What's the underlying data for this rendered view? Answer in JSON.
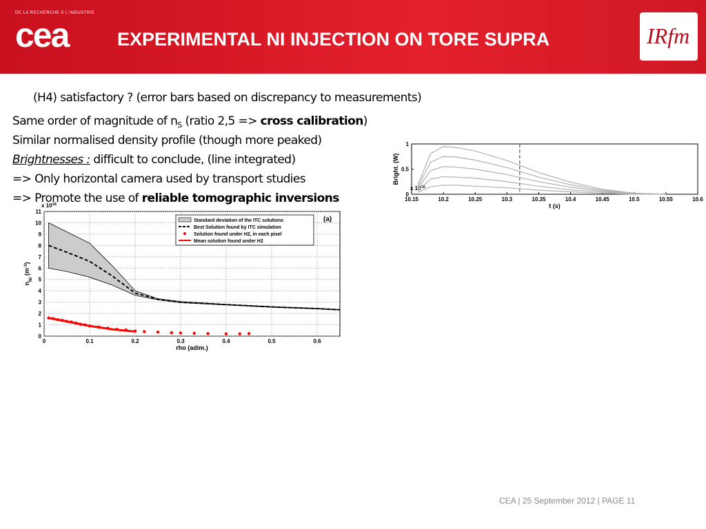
{
  "header": {
    "org": "DE LA RECHERCHE À L'INDUSTRIE",
    "logo": "cea",
    "title": "EXPERIMENTAL NI INJECTION ON TORE SUPRA",
    "right_logo": "IRfm"
  },
  "body": {
    "lines": [
      [
        {
          "text": "(H4) satisfactory ? (error bars based on discrepancy to measurements)",
          "style": "normal"
        }
      ],
      [
        {
          "text": "Same order of magnitude of n",
          "style": "normal"
        },
        {
          "text": "S",
          "style": "sub"
        },
        {
          "text": " (ratio 2,5 => ",
          "style": "normal"
        },
        {
          "text": "cross calibration",
          "style": "bold"
        },
        {
          "text": ")",
          "style": "normal"
        }
      ],
      [
        {
          "text": "Similar normalised density profile (though more peaked)",
          "style": "normal"
        }
      ],
      [
        {
          "text": "Brightnesses :",
          "style": "italic-underline"
        },
        {
          "text": " difficult to conclude, (line integrated)",
          "style": "normal"
        }
      ],
      [
        {
          "text": "=> Only horizontal camera used by transport studies",
          "style": "normal"
        }
      ],
      [
        {
          "text": "=> Promote the use of ",
          "style": "normal"
        },
        {
          "text": "reliable tomographic inversions",
          "style": "bold"
        }
      ]
    ]
  },
  "charts": [
    {
      "type": "line",
      "y_label": [
        {
          "text": "Bright. (W)",
          "shift": "none"
        }
      ],
      "y_multiplier": [
        {
          "text": "x 10",
          "shift": "none"
        },
        {
          "text": "16",
          "shift": "sup"
        }
      ],
      "x_label": [
        {
          "text": "t (s)",
          "shift": "none"
        }
      ],
      "xlim": [
        10.15,
        10.6
      ],
      "xticks": [
        10.15,
        10.2,
        10.25,
        10.3,
        10.35,
        10.4,
        10.45,
        10.5,
        10.55,
        10.6
      ],
      "ylim": [
        0,
        1
      ],
      "yticks": [
        0,
        0.5,
        1
      ],
      "vline": 10.32,
      "x": [
        10.16,
        10.18,
        10.2,
        10.22,
        10.25,
        10.3,
        10.35,
        10.4,
        10.45,
        10.5,
        10.55
      ],
      "series": [
        {
          "color": "#b0b0b0",
          "values": [
            0.19,
            0.81,
            0.95,
            0.93,
            0.86,
            0.67,
            0.43,
            0.24,
            0.1,
            0.02,
            0
          ]
        },
        {
          "color": "#b0b0b0",
          "values": [
            0.15,
            0.64,
            0.75,
            0.74,
            0.68,
            0.53,
            0.34,
            0.19,
            0.08,
            0.02,
            0
          ]
        },
        {
          "color": "#b0b0b0",
          "values": [
            0.11,
            0.47,
            0.55,
            0.54,
            0.5,
            0.39,
            0.25,
            0.14,
            0.06,
            0.01,
            0
          ]
        },
        {
          "color": "#b0b0b0",
          "values": [
            0.07,
            0.3,
            0.35,
            0.34,
            0.32,
            0.25,
            0.16,
            0.09,
            0.04,
            0.01,
            0
          ]
        },
        {
          "color": "#b0b0b0",
          "values": [
            0.04,
            0.15,
            0.18,
            0.18,
            0.16,
            0.13,
            0.08,
            0.05,
            0.02,
            0,
            0
          ]
        }
      ]
    },
    {
      "type": "line",
      "panel": "(a)",
      "y_label": [
        {
          "text": "n",
          "shift": "none"
        },
        {
          "text": "Ni",
          "shift": "sub"
        },
        {
          "text": " (m",
          "shift": "none"
        },
        {
          "text": "-3",
          "shift": "sup"
        },
        {
          "text": ")",
          "shift": "none"
        }
      ],
      "y_multiplier": [
        {
          "text": "x 10",
          "shift": "none"
        },
        {
          "text": "18",
          "shift": "sup"
        }
      ],
      "x_label": [
        {
          "text": "rho (adim.)",
          "shift": "none"
        }
      ],
      "xlim": [
        0,
        0.65
      ],
      "xticks": [
        0,
        0.1,
        0.2,
        0.3,
        0.4,
        0.5,
        0.6
      ],
      "ylim": [
        0,
        11
      ],
      "yticks": [
        0,
        1,
        2,
        3,
        4,
        5,
        6,
        7,
        8,
        9,
        10,
        11
      ],
      "grid": true,
      "legend": "upper-right",
      "series": [
        {
          "name": "Standard deviation of the ITC solutions",
          "kind": "band",
          "color": "#cccccc",
          "x": [
            0.01,
            0.05,
            0.1,
            0.15,
            0.2,
            0.25,
            0.3,
            0.4,
            0.5,
            0.6,
            0.65
          ],
          "upper": [
            10,
            9.2,
            8.2,
            6.2,
            4,
            3.3,
            3.05,
            2.8,
            2.6,
            2.45,
            2.35
          ],
          "lower": [
            6,
            5.7,
            5.2,
            4.5,
            3.6,
            3.2,
            2.95,
            2.75,
            2.55,
            2.4,
            2.3
          ]
        },
        {
          "name": "Best Solution found by ITC simulation",
          "kind": "dashed",
          "color": "#000000",
          "x": [
            0.01,
            0.05,
            0.1,
            0.15,
            0.2,
            0.25,
            0.3,
            0.4,
            0.5,
            0.6,
            0.65
          ],
          "values": [
            8,
            7.4,
            6.6,
            5.3,
            3.8,
            3.25,
            3,
            2.78,
            2.58,
            2.43,
            2.33
          ]
        },
        {
          "name": "Solution found under H2, in each pixel",
          "kind": "scatter",
          "color": "#ff0000",
          "x": [
            0.01,
            0.02,
            0.03,
            0.04,
            0.05,
            0.06,
            0.07,
            0.08,
            0.09,
            0.1,
            0.12,
            0.14,
            0.16,
            0.18,
            0.2,
            0.22,
            0.25,
            0.28,
            0.3,
            0.33,
            0.36,
            0.4,
            0.43,
            0.45
          ],
          "values": [
            1.6,
            1.55,
            1.45,
            1.4,
            1.3,
            1.25,
            1.15,
            1.05,
            1,
            0.9,
            0.8,
            0.7,
            0.6,
            0.55,
            0.45,
            0.4,
            0.35,
            0.3,
            0.28,
            0.25,
            0.22,
            0.2,
            0.2,
            0.22
          ]
        },
        {
          "name": "Mean solution found under H2",
          "kind": "solid",
          "color": "#ff0000",
          "x": [
            0.01,
            0.05,
            0.1,
            0.15,
            0.2
          ],
          "values": [
            1.6,
            1.3,
            0.9,
            0.6,
            0.4
          ]
        }
      ]
    }
  ],
  "footer": "CEA | 25 September 2012 | PAGE 11"
}
